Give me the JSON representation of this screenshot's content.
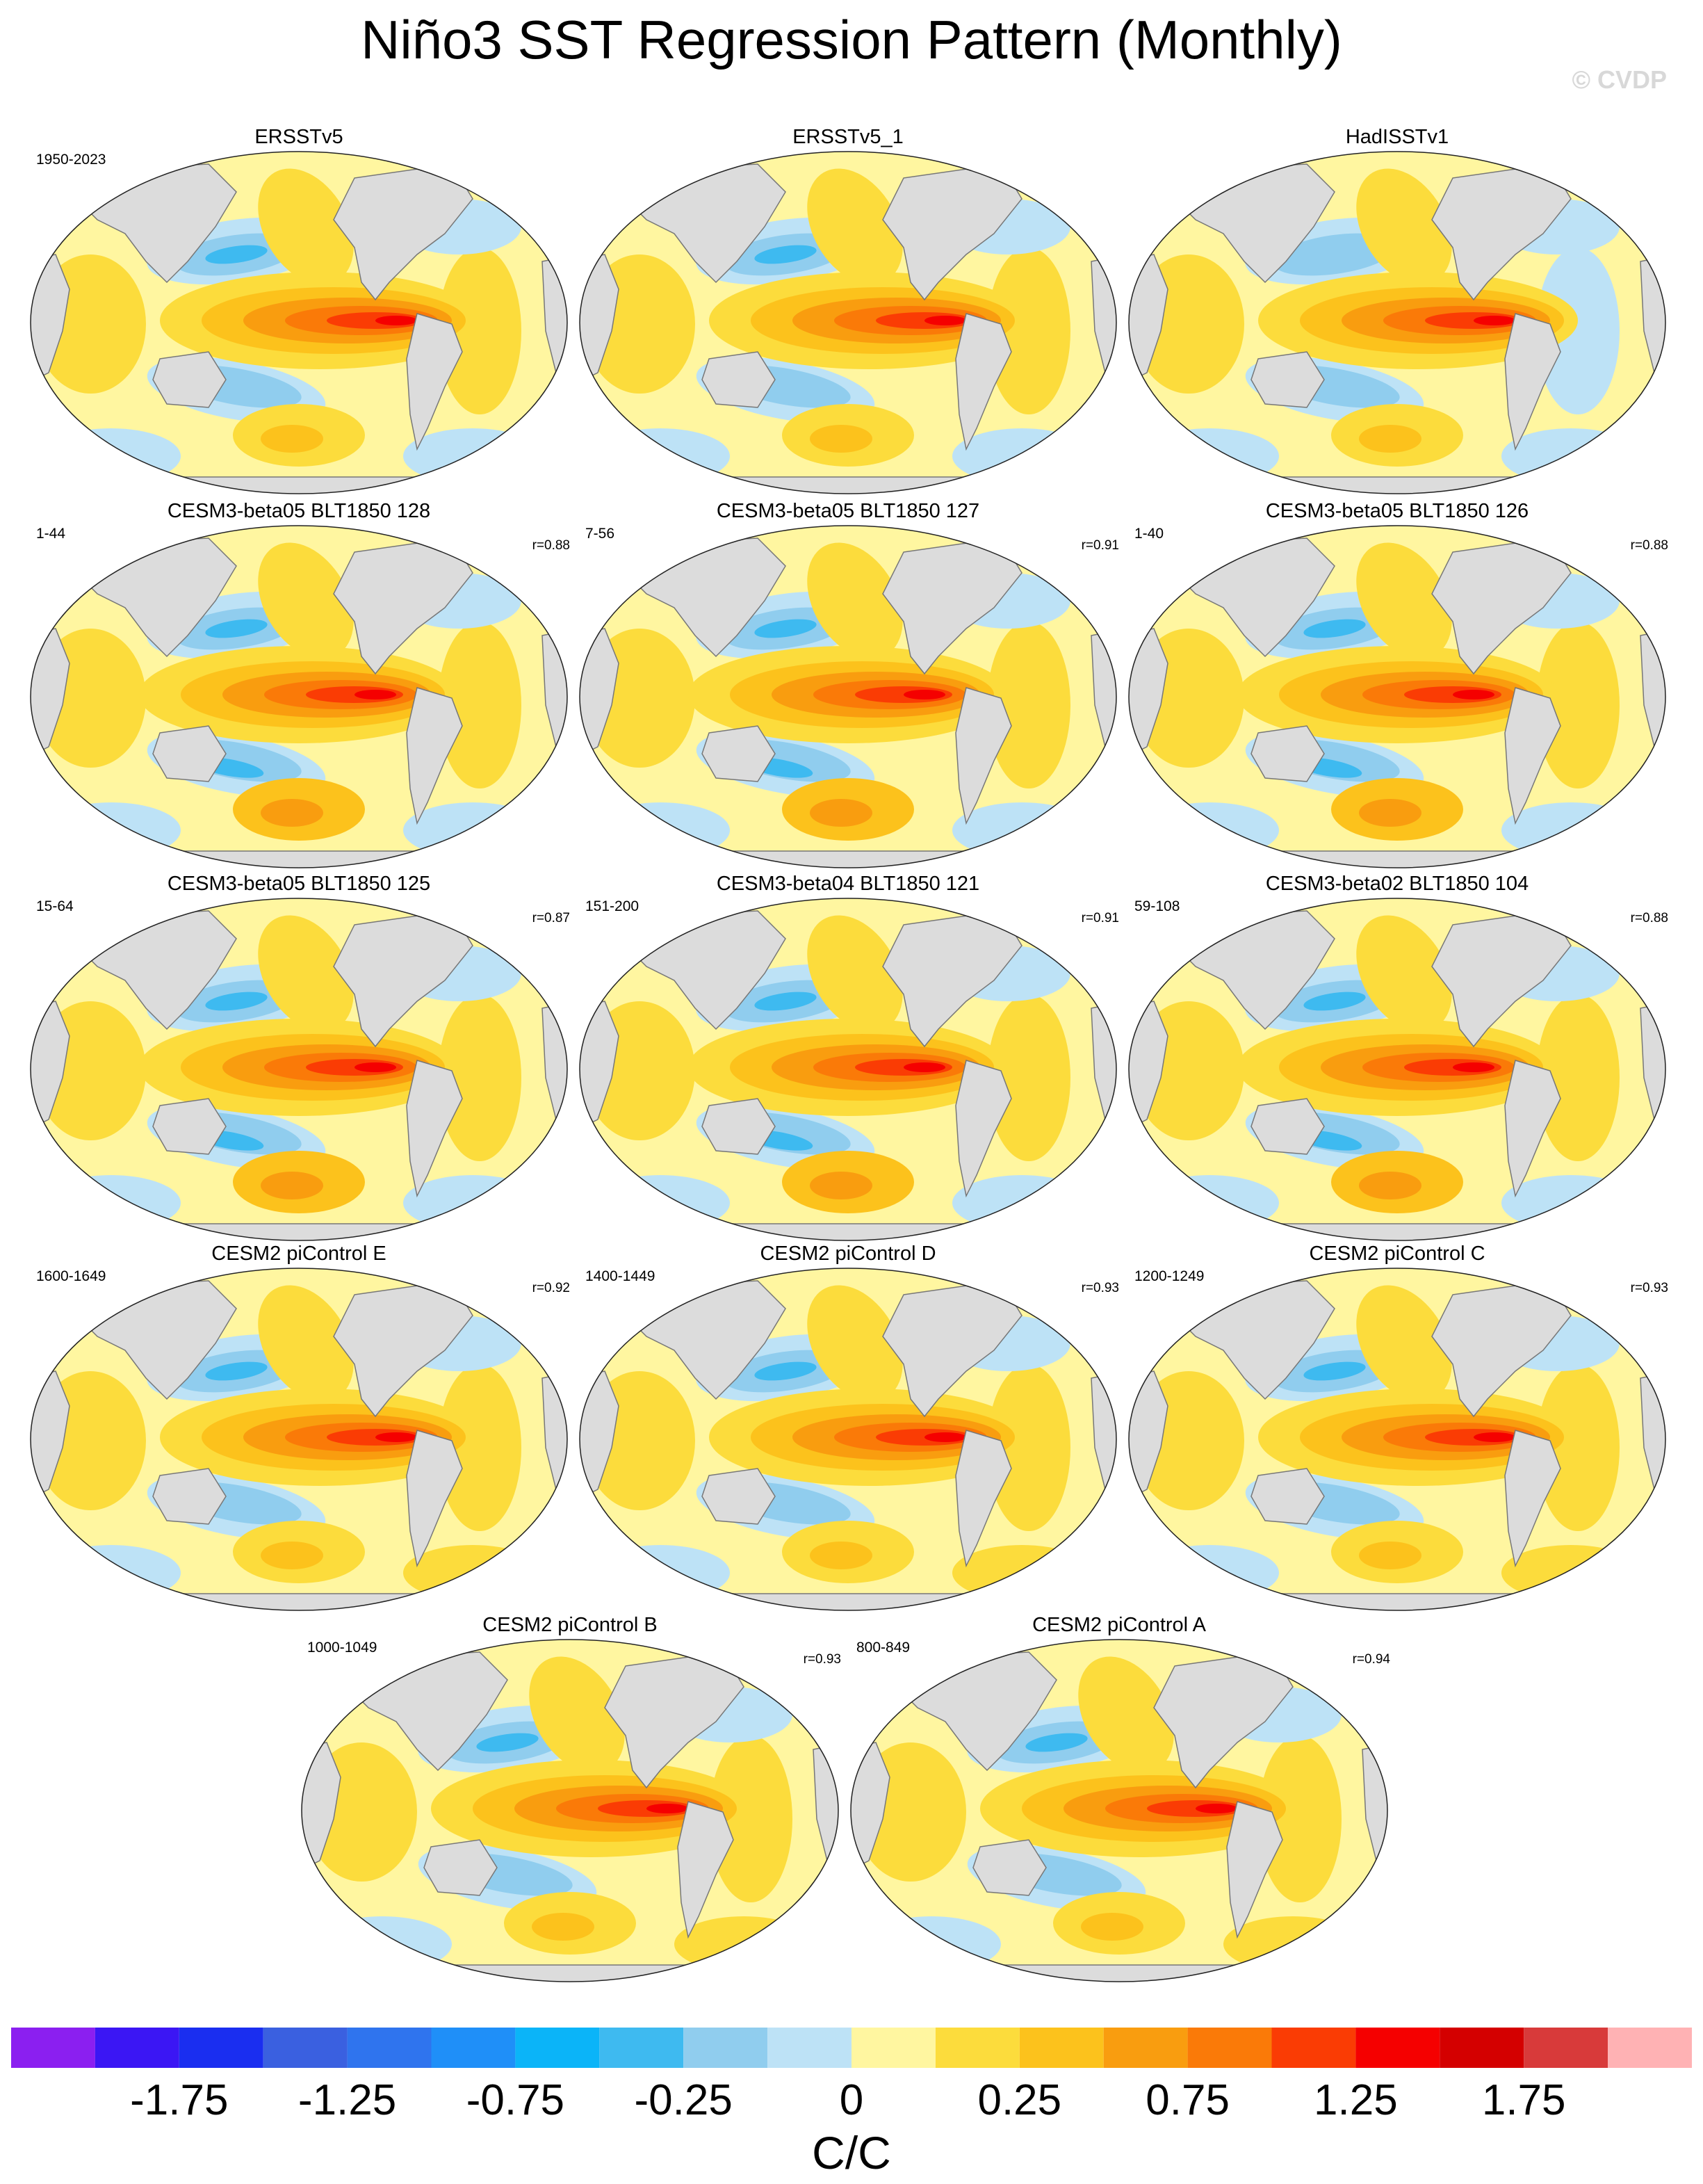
{
  "title": "Niño3 SST Regression Pattern (Monthly)",
  "watermark": "© CVDP",
  "units": "C/C",
  "panels": [
    {
      "name": "ERSSTv5",
      "period": "1950-2023",
      "r": "",
      "variant": 0
    },
    {
      "name": "ERSSTv5_1",
      "period": "",
      "r": "",
      "variant": 0
    },
    {
      "name": "HadISSTv1",
      "period": "",
      "r": "",
      "variant": 1
    },
    {
      "name": "CESM3-beta05 BLT1850 128",
      "period": "1-44",
      "r": "r=0.88",
      "variant": 2
    },
    {
      "name": "CESM3-beta05 BLT1850 127",
      "period": "7-56",
      "r": "r=0.91",
      "variant": 2
    },
    {
      "name": "CESM3-beta05 BLT1850 126",
      "period": "1-40",
      "r": "r=0.88",
      "variant": 2
    },
    {
      "name": "CESM3-beta05 BLT1850 125",
      "period": "15-64",
      "r": "r=0.87",
      "variant": 2
    },
    {
      "name": "CESM3-beta04 BLT1850 121",
      "period": "151-200",
      "r": "r=0.91",
      "variant": 2
    },
    {
      "name": "CESM3-beta02 BLT1850 104",
      "period": "59-108",
      "r": "r=0.88",
      "variant": 2
    },
    {
      "name": "CESM2 piControl E",
      "period": "1600-1649",
      "r": "r=0.92",
      "variant": 3
    },
    {
      "name": "CESM2 piControl D",
      "period": "1400-1449",
      "r": "r=0.93",
      "variant": 3
    },
    {
      "name": "CESM2 piControl C",
      "period": "1200-1249",
      "r": "r=0.93",
      "variant": 3
    },
    {
      "name": "CESM2 piControl B",
      "period": "1000-1049",
      "r": "r=0.93",
      "variant": 3
    },
    {
      "name": "CESM2 piControl A",
      "period": "800-849",
      "r": "r=0.94",
      "variant": 3
    }
  ],
  "colorbar": {
    "colors": [
      "#8b1ff0",
      "#3b16f4",
      "#1a2ef0",
      "#3a60e0",
      "#2f74ee",
      "#1f8ff8",
      "#0bb4f8",
      "#3ebaf0",
      "#90cdee",
      "#bde2f6",
      "#fff6a0",
      "#fcdc3c",
      "#fcc21c",
      "#f99d0f",
      "#fa7a08",
      "#fa3c04",
      "#f50000",
      "#d40000",
      "#d83a3a",
      "#ffb2b4"
    ],
    "tick_labels": [
      "-1.75",
      "-1.25",
      "-0.75",
      "-0.25",
      "0",
      "0.25",
      "0.75",
      "1.25",
      "1.75"
    ]
  }
}
